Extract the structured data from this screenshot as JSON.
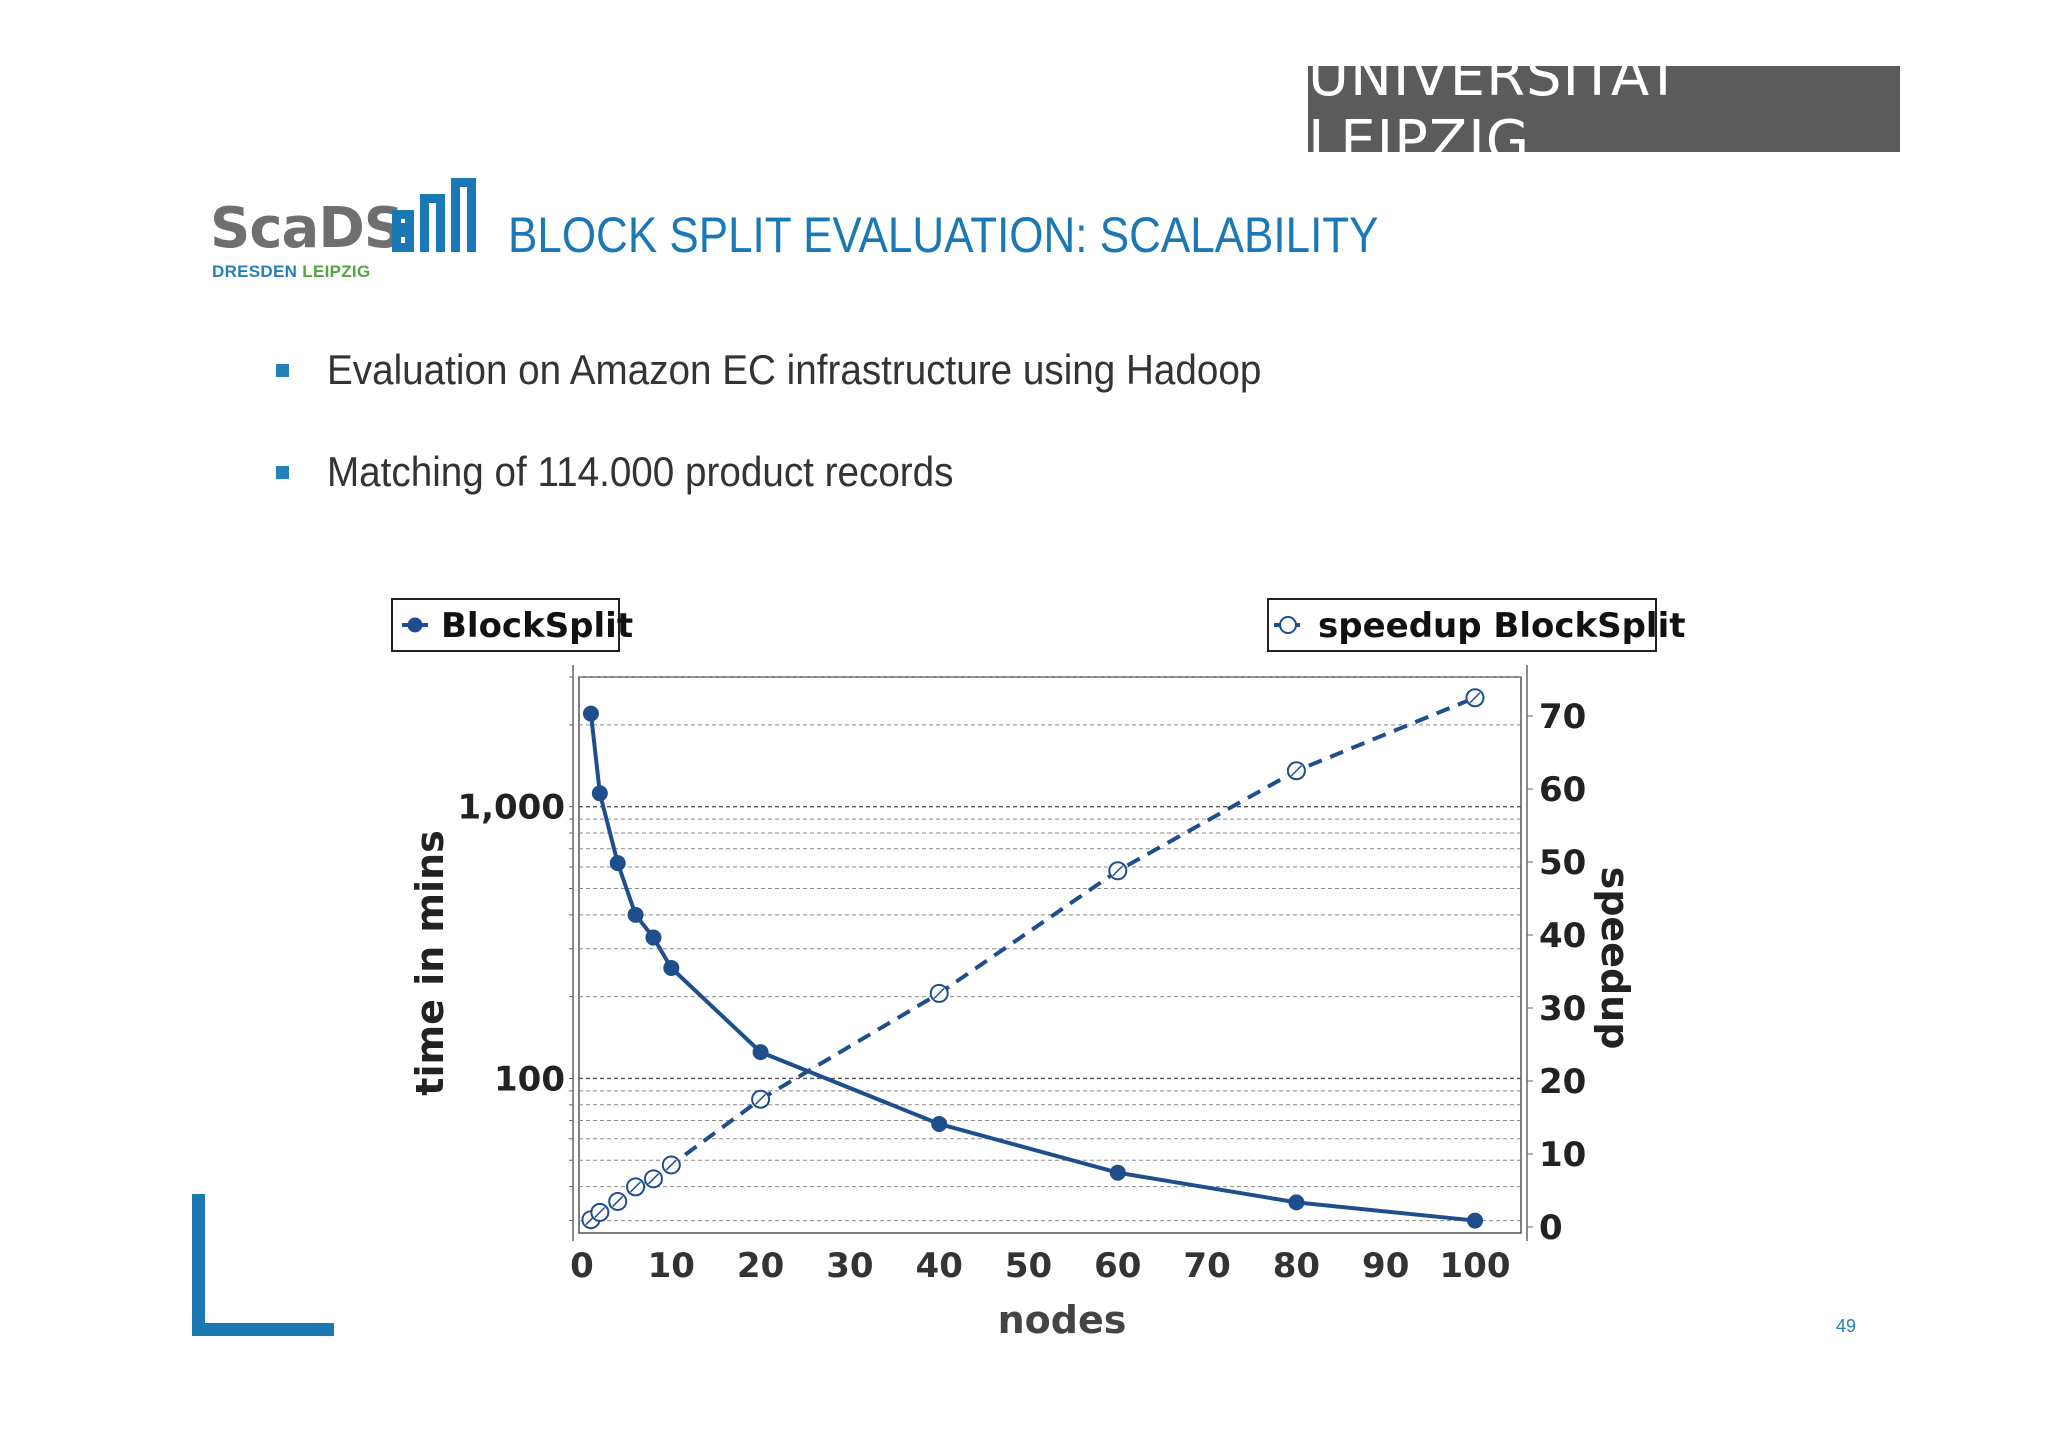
{
  "header": {
    "university": "UNIVERSITÄT LEIPZIG",
    "logo_main": "ScaDS",
    "logo_sub_1": "DRESDEN",
    "logo_sub_2": "LEIPZIG",
    "title": "BLOCK SPLIT EVALUATION: SCALABILITY"
  },
  "bullets": [
    "Evaluation on Amazon EC infrastructure using Hadoop",
    "Matching of 114.000 product records"
  ],
  "page_number": "49",
  "colors": {
    "accent": "#1a78b4",
    "series": "#1f4e8c",
    "banner_bg": "#5b5b5b",
    "logo_green": "#56a43e"
  },
  "chart_data": {
    "type": "line",
    "xlabel": "nodes",
    "ylabel": "time in mins",
    "y2label": "speedup",
    "xlim": [
      0,
      105
    ],
    "x_ticks": [
      0,
      10,
      20,
      30,
      40,
      50,
      60,
      70,
      80,
      90,
      100
    ],
    "y_scale": "log",
    "ylim": [
      27,
      3000
    ],
    "y_ticks": [
      100,
      1000
    ],
    "y_tick_labels": [
      "100",
      "1,000"
    ],
    "y2lim": [
      0,
      75
    ],
    "y2_ticks": [
      0,
      10,
      20,
      30,
      40,
      50,
      60,
      70
    ],
    "grid": true,
    "series": [
      {
        "name": "BlockSplit",
        "axis": "left",
        "style": "solid",
        "marker": "filled-circle",
        "x": [
          1,
          2,
          4,
          6,
          8,
          10,
          20,
          40,
          60,
          80,
          100
        ],
        "y": [
          2200,
          1120,
          620,
          400,
          330,
          255,
          125,
          68,
          45,
          35,
          30
        ]
      },
      {
        "name": "speedup BlockSplit",
        "axis": "right",
        "style": "dashed",
        "marker": "open-circle",
        "x": [
          1,
          2,
          4,
          6,
          8,
          10,
          20,
          40,
          60,
          80,
          100
        ],
        "y": [
          1,
          2,
          3.5,
          5.5,
          6.6,
          8.5,
          17.5,
          32,
          48.8,
          62.5,
          72.5
        ]
      }
    ],
    "legend": [
      {
        "label": "BlockSplit",
        "placement": "top-left"
      },
      {
        "label": "speedup BlockSplit",
        "placement": "top-right"
      }
    ]
  }
}
